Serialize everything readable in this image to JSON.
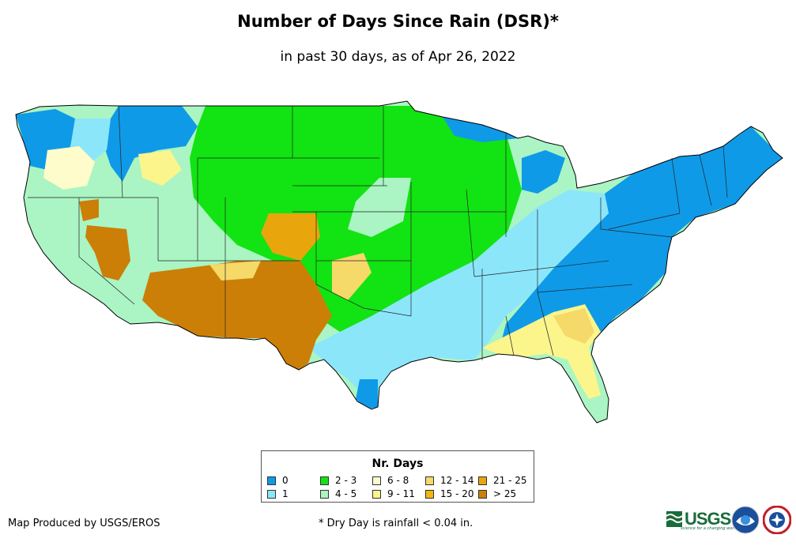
{
  "title": "Number of Days Since Rain (DSR)*",
  "subtitle": "in past 30 days, as of Apr 26, 2022",
  "legend": {
    "title": "Nr. Days",
    "items": [
      {
        "label": "0",
        "color": "#0f9ae8"
      },
      {
        "label": "1",
        "color": "#8ce6fa"
      },
      {
        "label": "2 - 3",
        "color": "#12e312"
      },
      {
        "label": "4 - 5",
        "color": "#aaf5c3"
      },
      {
        "label": "6 - 8",
        "color": "#fffccb"
      },
      {
        "label": "9 - 11",
        "color": "#fbf58c"
      },
      {
        "label": "12 - 14",
        "color": "#f5d969"
      },
      {
        "label": "15 - 20",
        "color": "#f2b70e"
      },
      {
        "label": "21 - 25",
        "color": "#e8a60c"
      },
      {
        "label": "> 25",
        "color": "#cc7f06"
      }
    ]
  },
  "credit": "Map Produced by USGS/EROS",
  "footnote": "* Dry Day is rainfall < 0.04 in.",
  "logos": {
    "usgs": "USGS",
    "usgs_tagline": "science for a changing world",
    "icons": [
      "usgs-logo-icon",
      "noaa-logo-icon",
      "nws-logo-icon"
    ]
  }
}
